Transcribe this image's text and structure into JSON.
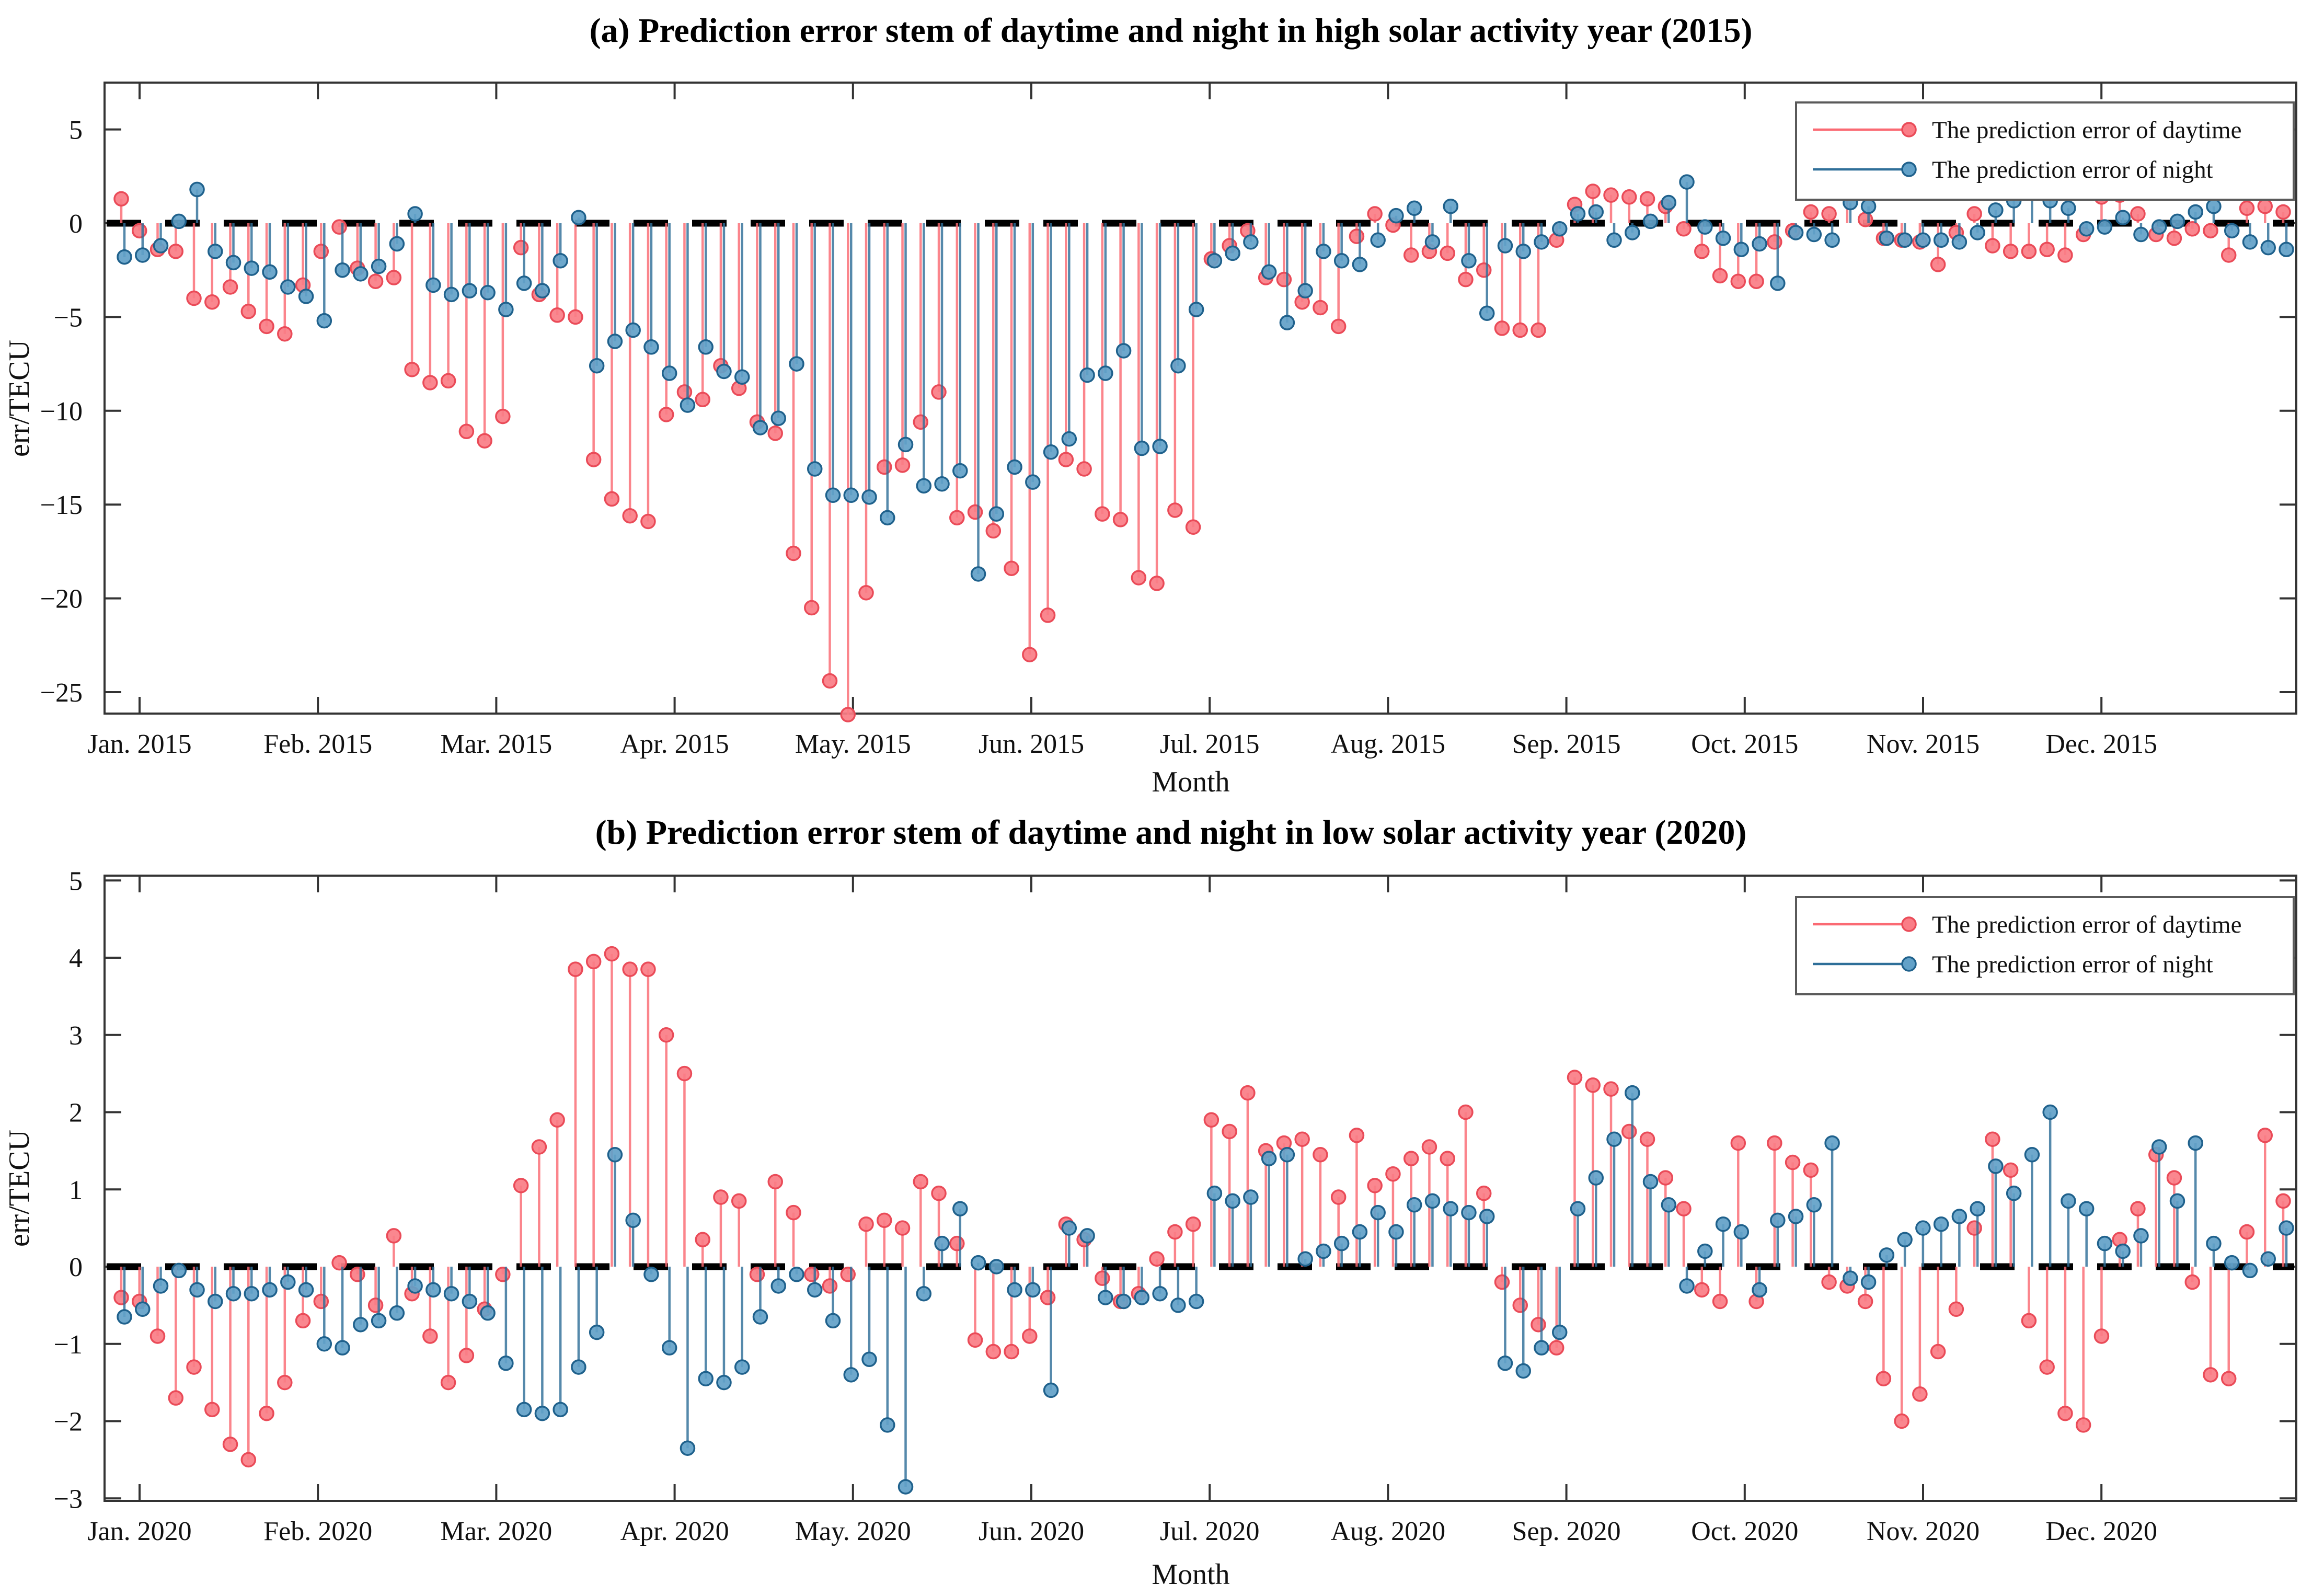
{
  "figure": {
    "background": "#ffffff"
  },
  "colors": {
    "day_line": "#fa6a73",
    "day_fill": "#fa7d86",
    "day_edge": "#ea4b58",
    "night_line": "#2f6f99",
    "night_fill": "#62a1c8",
    "night_edge": "#1f618c",
    "zero_line": "#000000",
    "axis": "#333333",
    "text": "#111111"
  },
  "chart_data": [
    {
      "id": "a",
      "type": "stem",
      "title": "(a) Prediction error stem of daytime and night in high solar activity year (2015)",
      "xlabel": "Month",
      "ylabel": "err/TECU",
      "ylim": [
        -26.1,
        7.5
      ],
      "yticks": [
        5,
        0,
        -5,
        -10,
        -15,
        -20,
        -25
      ],
      "xticklabels": [
        "Jan. 2015",
        "Feb. 2015",
        "Mar. 2015",
        "Apr. 2015",
        "May. 2015",
        "Jun. 2015",
        "Jul. 2015",
        "Aug. 2015",
        "Sep. 2015",
        "Oct. 2015",
        "Nov. 2015",
        "Dec. 2015"
      ],
      "grid": false,
      "zero_dashed_line": true,
      "legend_position": "top-right",
      "series": [
        {
          "name": "The prediction error of daytime",
          "color_role": "day",
          "values": [
            1.3,
            -0.4,
            -1.4,
            -1.5,
            -4.0,
            -4.2,
            -3.4,
            -4.7,
            -5.5,
            -5.9,
            -3.3,
            -1.5,
            -0.2,
            -2.4,
            -3.1,
            -2.9,
            -7.8,
            -8.5,
            -8.4,
            -11.1,
            -11.6,
            -10.3,
            -1.3,
            -3.8,
            -4.9,
            -5.0,
            -12.6,
            -14.7,
            -15.6,
            -15.9,
            -10.2,
            -9.0,
            -9.4,
            -7.6,
            -8.8,
            -10.6,
            -11.2,
            -17.6,
            -20.5,
            -24.4,
            -26.2,
            -19.7,
            -13.0,
            -12.9,
            -10.6,
            -9.0,
            -15.7,
            -15.4,
            -16.4,
            -18.4,
            -23.0,
            -20.9,
            -12.6,
            -13.1,
            -15.5,
            -15.8,
            -18.9,
            -19.2,
            -15.3,
            -16.2,
            -1.9,
            -1.2,
            -0.4,
            -2.9,
            -3.0,
            -4.2,
            -4.5,
            -5.5,
            -0.7,
            0.5,
            -0.1,
            -1.7,
            -1.5,
            -1.6,
            -3.0,
            -2.5,
            -5.6,
            -5.7,
            -5.7,
            -0.9,
            1.0,
            1.7,
            1.5,
            1.4,
            1.3,
            0.9,
            -0.3,
            -1.5,
            -2.8,
            -3.1,
            -3.1,
            -1.0,
            -0.4,
            0.6,
            0.5,
            1.7,
            0.2,
            -0.8,
            -0.9,
            -1.0,
            -2.2,
            -0.5,
            0.5,
            -1.2,
            -1.5,
            -1.5,
            -1.4,
            -1.7,
            -0.6,
            1.4,
            1.5,
            0.5,
            -0.6,
            -0.8,
            -0.3,
            -0.4,
            -1.7,
            0.8,
            0.9,
            0.6
          ]
        },
        {
          "name": "The prediction error of night",
          "color_role": "night",
          "values": [
            -1.8,
            -1.7,
            -1.2,
            0.1,
            1.8,
            -1.5,
            -2.1,
            -2.4,
            -2.6,
            -3.4,
            -3.9,
            -5.2,
            -2.5,
            -2.7,
            -2.3,
            -1.1,
            0.5,
            -3.3,
            -3.8,
            -3.6,
            -3.7,
            -4.6,
            -3.2,
            -3.6,
            -2.0,
            0.3,
            -7.6,
            -6.3,
            -5.7,
            -6.6,
            -8.0,
            -9.7,
            -6.6,
            -7.9,
            -8.2,
            -10.9,
            -10.4,
            -7.5,
            -13.1,
            -14.5,
            -14.5,
            -14.6,
            -15.7,
            -11.8,
            -14.0,
            -13.9,
            -13.2,
            -18.7,
            -15.5,
            -13.0,
            -13.8,
            -12.2,
            -11.5,
            -8.1,
            -8.0,
            -6.8,
            -12.0,
            -11.9,
            -7.6,
            -4.6,
            -2.0,
            -1.6,
            -1.0,
            -2.6,
            -5.3,
            -3.6,
            -1.5,
            -2.0,
            -2.2,
            -0.9,
            0.4,
            0.8,
            -1.0,
            0.9,
            -2.0,
            -4.8,
            -1.2,
            -1.5,
            -1.0,
            -0.3,
            0.5,
            0.6,
            -0.9,
            -0.5,
            0.1,
            1.1,
            2.2,
            -0.2,
            -0.8,
            -1.4,
            -1.1,
            -3.2,
            -0.5,
            -0.6,
            -0.9,
            1.1,
            0.9,
            -0.8,
            -0.9,
            -0.9,
            -0.9,
            -1.0,
            -0.5,
            0.7,
            1.2,
            1.7,
            1.2,
            0.8,
            -0.3,
            -0.2,
            0.3,
            -0.6,
            -0.2,
            0.1,
            0.6,
            0.9,
            -0.4,
            -1.0,
            -1.3,
            -1.4
          ]
        }
      ]
    },
    {
      "id": "b",
      "type": "stem",
      "title": "(b) Prediction error stem of daytime and night in low solar activity year (2020)",
      "xlabel": "Month",
      "ylabel": "err/TECU",
      "ylim": [
        -3.16,
        5.1
      ],
      "yticks": [
        5,
        4,
        3,
        2,
        1,
        0,
        -1,
        -2,
        -3
      ],
      "xticklabels": [
        "Jan. 2020",
        "Feb. 2020",
        "Mar. 2020",
        "Apr. 2020",
        "May. 2020",
        "Jun. 2020",
        "Jul. 2020",
        "Aug. 2020",
        "Sep. 2020",
        "Oct. 2020",
        "Nov. 2020",
        "Dec. 2020"
      ],
      "grid": false,
      "zero_dashed_line": true,
      "legend_position": "top-right",
      "series": [
        {
          "name": "The prediction error of daytime",
          "color_role": "day",
          "values": [
            -0.4,
            -0.45,
            -0.9,
            -1.7,
            -1.3,
            -1.85,
            -2.3,
            -2.5,
            -1.9,
            -1.5,
            -0.7,
            -0.45,
            0.05,
            -0.1,
            -0.5,
            0.4,
            -0.35,
            -0.9,
            -1.5,
            -1.15,
            -0.55,
            -0.1,
            1.05,
            1.55,
            1.9,
            3.85,
            3.95,
            4.05,
            3.85,
            3.85,
            3.0,
            2.5,
            0.35,
            0.9,
            0.85,
            -0.1,
            1.1,
            0.7,
            -0.1,
            -0.25,
            -0.1,
            0.55,
            0.6,
            0.5,
            1.1,
            0.95,
            0.3,
            -0.95,
            -1.1,
            -1.1,
            -0.9,
            -0.4,
            0.55,
            0.35,
            -0.15,
            -0.45,
            -0.35,
            0.1,
            0.45,
            0.55,
            1.9,
            1.75,
            2.25,
            1.5,
            1.6,
            1.65,
            1.45,
            0.9,
            1.7,
            1.05,
            1.2,
            1.4,
            1.55,
            1.4,
            2.0,
            0.95,
            -0.2,
            -0.5,
            -0.75,
            -1.05,
            2.45,
            2.35,
            2.3,
            1.75,
            1.65,
            1.15,
            0.75,
            -0.3,
            -0.45,
            1.6,
            -0.45,
            1.6,
            1.35,
            1.25,
            -0.2,
            -0.25,
            -0.45,
            -1.45,
            -2.0,
            -1.65,
            -1.1,
            -0.55,
            0.5,
            1.65,
            1.25,
            -0.7,
            -1.3,
            -1.9,
            -2.05,
            -0.9,
            0.35,
            0.75,
            1.45,
            1.15,
            -0.2,
            -1.4,
            -1.45,
            0.45,
            1.7,
            0.85
          ]
        },
        {
          "name": "The prediction error of night",
          "color_role": "night",
          "values": [
            -0.65,
            -0.55,
            -0.25,
            -0.05,
            -0.3,
            -0.45,
            -0.35,
            -0.35,
            -0.3,
            -0.2,
            -0.3,
            -1.0,
            -1.05,
            -0.75,
            -0.7,
            -0.6,
            -0.25,
            -0.3,
            -0.35,
            -0.45,
            -0.6,
            -1.25,
            -1.85,
            -1.9,
            -1.85,
            -1.3,
            -0.85,
            1.45,
            0.6,
            -0.1,
            -1.05,
            -2.35,
            -1.45,
            -1.5,
            -1.3,
            -0.65,
            -0.25,
            -0.1,
            -0.3,
            -0.7,
            -1.4,
            -1.2,
            -2.05,
            -2.85,
            -0.35,
            0.3,
            0.75,
            0.05,
            0.0,
            -0.3,
            -0.3,
            -1.6,
            0.5,
            0.4,
            -0.4,
            -0.45,
            -0.4,
            -0.35,
            -0.5,
            -0.45,
            0.95,
            0.85,
            0.9,
            1.4,
            1.45,
            0.1,
            0.2,
            0.3,
            0.45,
            0.7,
            0.45,
            0.8,
            0.85,
            0.75,
            0.7,
            0.65,
            -1.25,
            -1.35,
            -1.05,
            -0.85,
            0.75,
            1.15,
            1.65,
            2.25,
            1.1,
            0.8,
            -0.25,
            0.2,
            0.55,
            0.45,
            -0.3,
            0.6,
            0.65,
            0.8,
            1.6,
            -0.15,
            -0.2,
            0.15,
            0.35,
            0.5,
            0.55,
            0.65,
            0.75,
            1.3,
            0.95,
            1.45,
            2.0,
            0.85,
            0.75,
            0.3,
            0.2,
            0.4,
            1.55,
            0.85,
            1.6,
            0.3,
            0.05,
            -0.05,
            0.1,
            0.5
          ]
        }
      ]
    }
  ]
}
